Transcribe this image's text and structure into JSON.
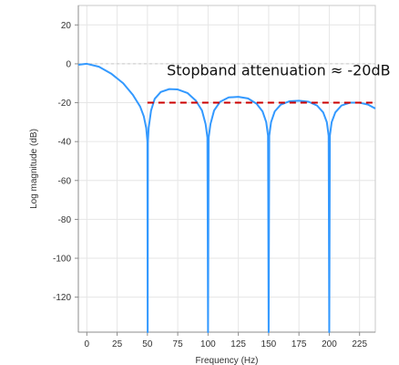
{
  "chart_data": {
    "type": "line",
    "xlabel": "Frequency (Hz)",
    "ylabel": "Log magnitude (dB)",
    "xlim": [
      -7,
      238
    ],
    "ylim": [
      -138,
      30
    ],
    "x_ticks": [
      0,
      25,
      50,
      75,
      100,
      125,
      150,
      175,
      200,
      225
    ],
    "y_ticks": [
      20,
      0,
      -20,
      -40,
      -60,
      -80,
      -100,
      -120
    ],
    "grid": true,
    "legend": "none",
    "series": [
      {
        "color": "#3399ff",
        "points": [
          [
            -7,
            -0.5
          ],
          [
            0,
            0
          ],
          [
            10,
            -1.5
          ],
          [
            20,
            -5
          ],
          [
            30,
            -10
          ],
          [
            38,
            -16
          ],
          [
            44,
            -22
          ],
          [
            47,
            -27
          ],
          [
            49,
            -33
          ],
          [
            50,
            -40
          ],
          [
            50.2,
            -138
          ],
          [
            50.4,
            -40
          ],
          [
            51,
            -33
          ],
          [
            53,
            -24
          ],
          [
            56,
            -18
          ],
          [
            61,
            -14.5
          ],
          [
            68,
            -13
          ],
          [
            75,
            -13.2
          ],
          [
            83,
            -15
          ],
          [
            90,
            -19
          ],
          [
            95,
            -24
          ],
          [
            98,
            -31
          ],
          [
            99.5,
            -38
          ],
          [
            100,
            -138
          ],
          [
            100.5,
            -38
          ],
          [
            102,
            -31
          ],
          [
            105,
            -24
          ],
          [
            110,
            -19.5
          ],
          [
            117,
            -17.3
          ],
          [
            125,
            -17
          ],
          [
            133,
            -17.8
          ],
          [
            140,
            -20.5
          ],
          [
            145,
            -24.5
          ],
          [
            148,
            -30
          ],
          [
            149.5,
            -37
          ],
          [
            150,
            -138
          ],
          [
            150.5,
            -37
          ],
          [
            152,
            -30
          ],
          [
            155,
            -24.5
          ],
          [
            160,
            -21
          ],
          [
            167,
            -19.3
          ],
          [
            175,
            -19
          ],
          [
            183,
            -19.5
          ],
          [
            190,
            -21.5
          ],
          [
            195,
            -25
          ],
          [
            198,
            -30
          ],
          [
            199.5,
            -37
          ],
          [
            200,
            -138
          ],
          [
            200.5,
            -37
          ],
          [
            202,
            -30
          ],
          [
            205,
            -25
          ],
          [
            210,
            -21.5
          ],
          [
            217,
            -20
          ],
          [
            225,
            -20
          ],
          [
            232,
            -21
          ],
          [
            238,
            -23
          ]
        ]
      }
    ],
    "threshold_line": {
      "y": -20,
      "x_start": 50,
      "x_end": 238,
      "color": "#cc0000",
      "style": "dashed"
    },
    "annotation": {
      "text": "Stopband attenuation ≈ -20dB",
      "x": 66,
      "y": -6
    }
  }
}
